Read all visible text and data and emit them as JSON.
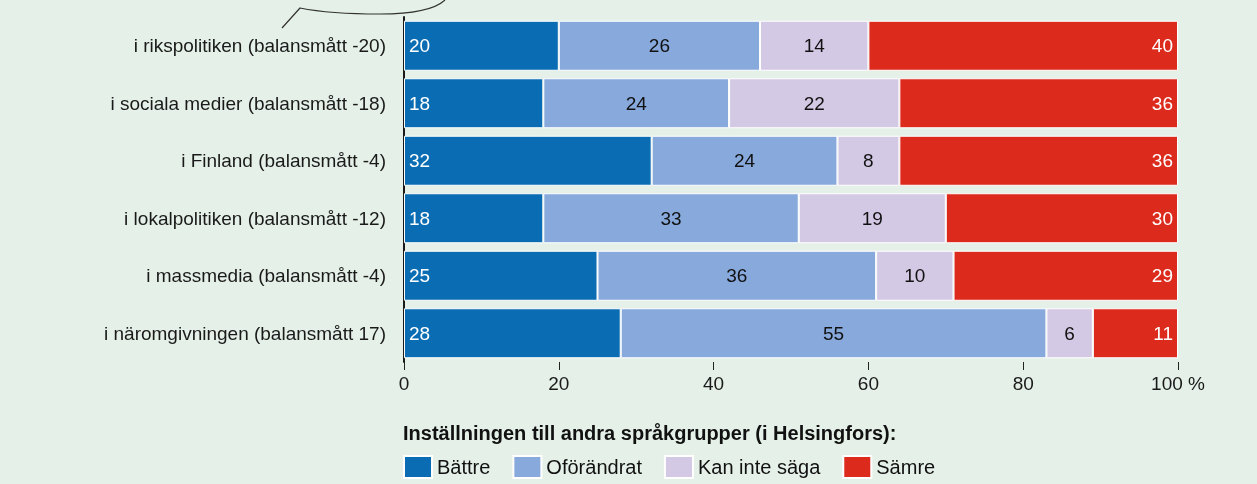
{
  "chart_data": {
    "type": "bar",
    "orientation": "horizontal",
    "stacked": true,
    "data_labels": true,
    "categories": [
      "i rikspolitiken (balansmått -20)",
      "i sociala medier (balansmått -18)",
      "i Finland (balansmått -4)",
      "i lokalpolitiken (balansmått -12)",
      "i massmedia (balansmått -4)",
      "i näromgivningen (balansmått 17)"
    ],
    "series": [
      {
        "name": "Bättre",
        "color": "#0a6db3",
        "values": [
          20,
          18,
          32,
          18,
          25,
          28
        ]
      },
      {
        "name": "Oförändrat",
        "color": "#87a9dc",
        "values": [
          26,
          24,
          24,
          33,
          36,
          55
        ]
      },
      {
        "name": "Kan inte säga",
        "color": "#d4c9e4",
        "values": [
          14,
          22,
          8,
          19,
          10,
          6
        ]
      },
      {
        "name": "Sämre",
        "color": "#dc2a1c",
        "values": [
          40,
          36,
          36,
          30,
          29,
          11
        ]
      }
    ],
    "xlim": [
      0,
      100
    ],
    "xticks": [
      0,
      20,
      40,
      60,
      80,
      {
        "value": 100,
        "label": "100 %"
      }
    ],
    "grid": false,
    "legend": "bottom",
    "legend_title": "Inställningen till andra språkgrupper (i Helsingfors):"
  }
}
